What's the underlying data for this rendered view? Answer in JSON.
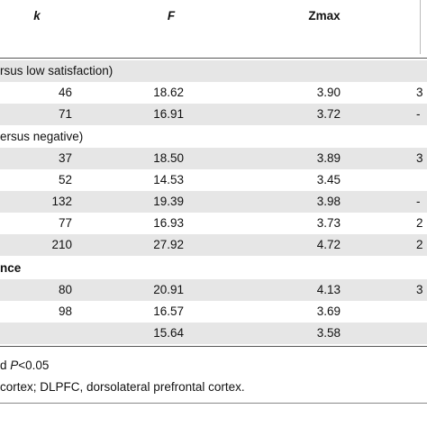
{
  "header": {
    "k": "k",
    "F": "F",
    "Zmax": "Zmax",
    "extra": ""
  },
  "sections": [
    {
      "title": "rsus low satisfaction)",
      "bold": false,
      "rows": [
        {
          "k": "46",
          "F": "18.62",
          "Zmax": "3.90",
          "extra": "3"
        },
        {
          "k": "71",
          "F": "16.91",
          "Zmax": "3.72",
          "extra": "-"
        }
      ]
    },
    {
      "title": "ersus negative)",
      "bold": false,
      "rows": [
        {
          "k": "37",
          "F": "18.50",
          "Zmax": "3.89",
          "extra": "3"
        },
        {
          "k": "52",
          "F": "14.53",
          "Zmax": "3.45",
          "extra": ""
        },
        {
          "k": "132",
          "F": "19.39",
          "Zmax": "3.98",
          "extra": "-"
        },
        {
          "k": "77",
          "F": "16.93",
          "Zmax": "3.73",
          "extra": "2"
        },
        {
          "k": "210",
          "F": "27.92",
          "Zmax": "4.72",
          "extra": "2"
        }
      ]
    },
    {
      "title": "nce",
      "bold": true,
      "rows": [
        {
          "k": "80",
          "F": "20.91",
          "Zmax": "4.13",
          "extra": "3"
        },
        {
          "k": "98",
          "F": "16.57",
          "Zmax": "3.69",
          "extra": ""
        },
        {
          "k": "",
          "F": "15.64",
          "Zmax": "3.58",
          "extra": ""
        }
      ]
    }
  ],
  "footnotes": {
    "line1_prefix": "d ",
    "line1_italic": "P",
    "line1_suffix": "<0.05",
    "line2": "cortex; DLPFC, dorsolateral prefrontal cortex."
  }
}
